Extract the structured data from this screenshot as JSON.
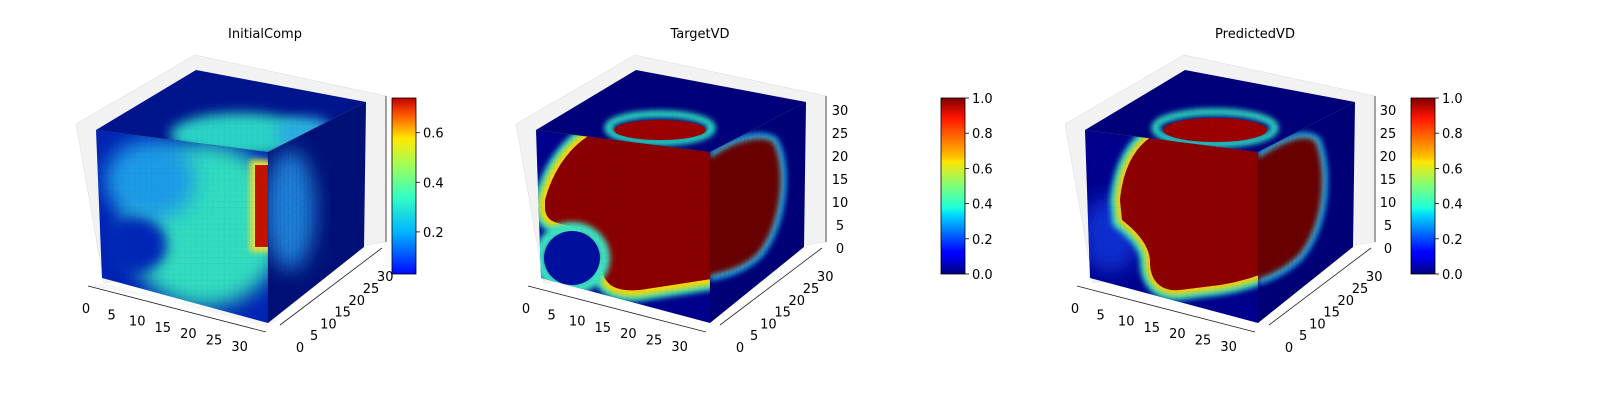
{
  "chart_data": [
    {
      "type": "heatmap",
      "title": "InitialComp",
      "x_ticks": [
        "0",
        "5",
        "10",
        "15",
        "20",
        "25",
        "30"
      ],
      "y_ticks": [
        "0",
        "5",
        "10",
        "15",
        "20",
        "25",
        "30"
      ],
      "z_ticks": [],
      "colorbar": {
        "min": 0.03,
        "max": 0.74,
        "ticks": [
          "0.2",
          "0.4",
          "0.6"
        ],
        "tick_values": [
          0.2,
          0.4,
          0.6
        ]
      },
      "description_values": {
        "background": 0.05,
        "inclusion": 0.32,
        "hotspot": 0.74
      }
    },
    {
      "type": "heatmap",
      "title": "TargetVD",
      "x_ticks": [
        "0",
        "5",
        "10",
        "15",
        "20",
        "25",
        "30"
      ],
      "y_ticks": [
        "0",
        "5",
        "10",
        "15",
        "20",
        "25",
        "30"
      ],
      "z_ticks": [
        "0",
        "5",
        "10",
        "15",
        "20",
        "25",
        "30"
      ],
      "colorbar": {
        "min": 0.0,
        "max": 1.0,
        "ticks": [
          "0.0",
          "0.2",
          "0.4",
          "0.6",
          "0.8",
          "1.0"
        ],
        "tick_values": [
          0,
          0.2,
          0.4,
          0.6,
          0.8,
          1.0
        ]
      },
      "description_values": {
        "background": 0.0,
        "inclusion": 1.0
      }
    },
    {
      "type": "heatmap",
      "title": "PredictedVD",
      "x_ticks": [
        "0",
        "5",
        "10",
        "15",
        "20",
        "25",
        "30"
      ],
      "y_ticks": [
        "0",
        "5",
        "10",
        "15",
        "20",
        "25",
        "30"
      ],
      "z_ticks": [
        "0",
        "5",
        "10",
        "15",
        "20",
        "25",
        "30"
      ],
      "colorbar": {
        "min": 0.0,
        "max": 1.0,
        "ticks": [
          "0.0",
          "0.2",
          "0.4",
          "0.6",
          "0.8",
          "1.0"
        ],
        "tick_values": [
          0,
          0.2,
          0.4,
          0.6,
          0.8,
          1.0
        ]
      },
      "description_values": {
        "background": 0.02,
        "inclusion": 0.97
      }
    }
  ]
}
